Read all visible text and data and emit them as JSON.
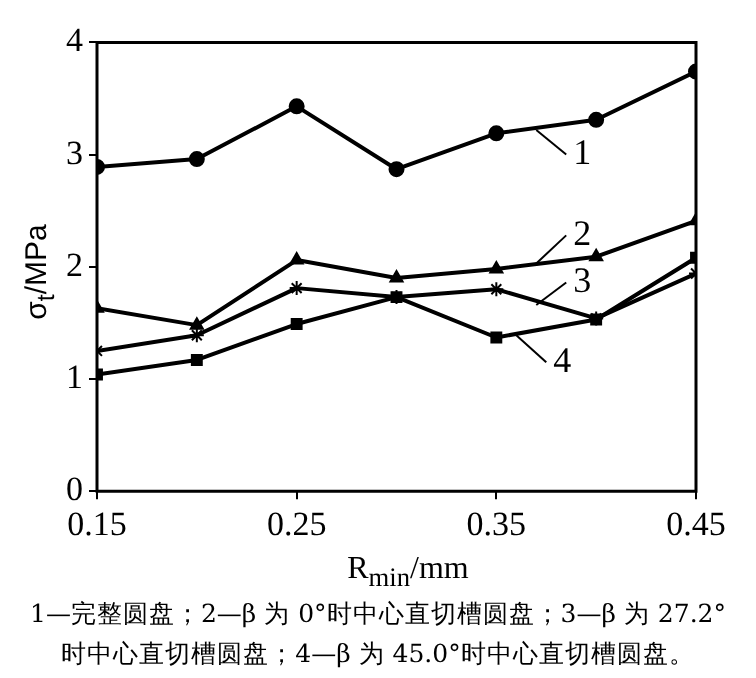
{
  "chart_data": {
    "type": "line",
    "xlabel": "R$_{min}$/mm",
    "ylabel": "σ$_{t}$/MPa",
    "x": [
      0.15,
      0.2,
      0.25,
      0.3,
      0.35,
      0.4,
      0.45
    ],
    "xlim": [
      0.15,
      0.45
    ],
    "xticks": [
      0.15,
      0.25,
      0.35,
      0.45
    ],
    "ylim": [
      0,
      4
    ],
    "yticks": [
      0,
      1,
      2,
      3,
      4
    ],
    "grid": false,
    "legend": "right",
    "line_style": "solid",
    "series": [
      {
        "name": "1",
        "color": "#000000",
        "marker": "circle",
        "values": [
          2.89,
          2.96,
          3.43,
          2.87,
          3.19,
          3.31,
          3.74
        ]
      },
      {
        "name": "2",
        "color": "#000000",
        "marker": "triangle",
        "values": [
          1.63,
          1.48,
          2.06,
          1.9,
          1.98,
          2.09,
          2.41
        ]
      },
      {
        "name": "3",
        "color": "#000000",
        "marker": "cross",
        "values": [
          1.25,
          1.39,
          1.81,
          1.73,
          1.8,
          1.54,
          1.94
        ]
      },
      {
        "name": "4",
        "color": "#000000",
        "marker": "square",
        "values": [
          1.04,
          1.17,
          1.49,
          1.73,
          1.37,
          1.53,
          2.08
        ]
      }
    ],
    "annotations": [
      "1—完整圆盘；2—β 为 0°时中心直切槽圆盘；3—β 为 27.2°时中心直切槽圆盘；4—β 为 45.0°时中心直切槽圆盘。"
    ]
  }
}
